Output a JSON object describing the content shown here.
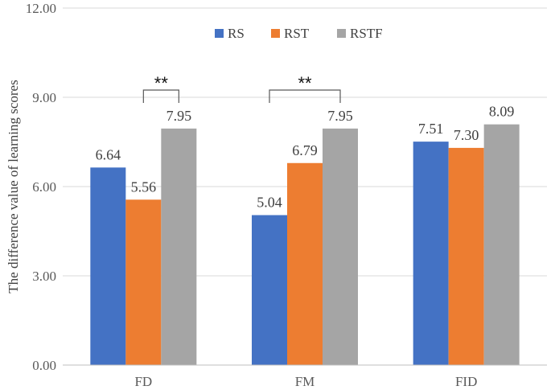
{
  "chart_data": {
    "type": "bar",
    "title": "",
    "xlabel": "",
    "ylabel": "The difference value of learning scores",
    "ylim": [
      0,
      12
    ],
    "yticks": [
      "0.00",
      "3.00",
      "6.00",
      "9.00",
      "12.00"
    ],
    "grid": true,
    "legend_position": "top",
    "categories": [
      "FD",
      "FM",
      "FID"
    ],
    "series": [
      {
        "name": "RS",
        "color": "#4472C4",
        "values": [
          6.64,
          5.04,
          7.51
        ],
        "labels": [
          "6.64",
          "5.04",
          "7.51"
        ]
      },
      {
        "name": "RST",
        "color": "#ED7D31",
        "values": [
          5.56,
          6.79,
          7.3
        ],
        "labels": [
          "5.56",
          "6.79",
          "7.30"
        ]
      },
      {
        "name": "RSTF",
        "color": "#A5A5A5",
        "values": [
          7.95,
          7.95,
          8.09
        ],
        "labels": [
          "7.95",
          "7.95",
          "8.09"
        ]
      }
    ],
    "annotations": [
      {
        "text": "**",
        "category": "FD",
        "from_series": 1,
        "to_series": 2
      },
      {
        "text": "**",
        "category": "FM",
        "from_series": 0,
        "to_series": 2
      }
    ]
  }
}
